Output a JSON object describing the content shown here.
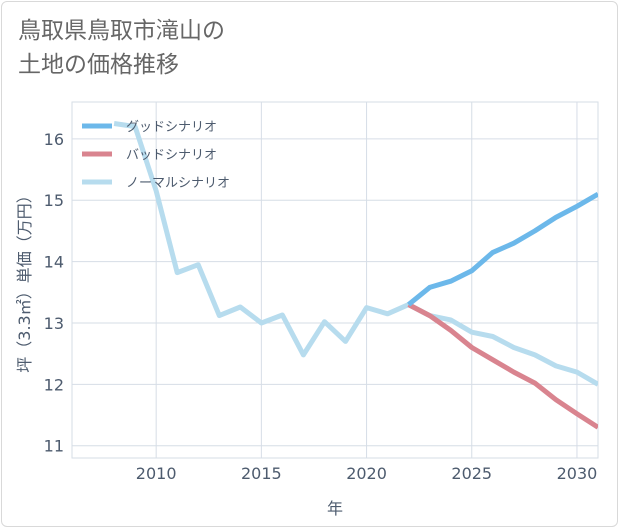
{
  "title_line1": "鳥取県鳥取市滝山の",
  "title_line2": "土地の価格推移",
  "chart_data": {
    "type": "line",
    "xlabel": "年",
    "ylabel": "坪（3.3㎡）単価（万円）",
    "xlim": [
      2006,
      2031
    ],
    "ylim": [
      10.8,
      16.6
    ],
    "xticks": [
      2010,
      2015,
      2020,
      2025,
      2030
    ],
    "yticks": [
      11,
      12,
      13,
      14,
      15,
      16
    ],
    "grid": true,
    "legend_position": "top-left",
    "series": [
      {
        "name": "グッドシナリオ",
        "color": "#6cb8ea",
        "x": [
          2022,
          2023,
          2024,
          2025,
          2026,
          2027,
          2028,
          2029,
          2030,
          2031
        ],
        "y": [
          13.3,
          13.58,
          13.68,
          13.85,
          14.15,
          14.3,
          14.5,
          14.72,
          14.9,
          15.1
        ]
      },
      {
        "name": "バッドシナリオ",
        "color": "#d9848f",
        "x": [
          2022,
          2023,
          2024,
          2025,
          2026,
          2027,
          2028,
          2029,
          2030,
          2031
        ],
        "y": [
          13.3,
          13.12,
          12.88,
          12.6,
          12.4,
          12.2,
          12.02,
          11.75,
          11.52,
          11.3
        ]
      },
      {
        "name": "ノーマルシナリオ",
        "color": "#b7dcee",
        "x": [
          2008,
          2009,
          2010,
          2011,
          2012,
          2013,
          2014,
          2015,
          2016,
          2017,
          2018,
          2019,
          2020,
          2021,
          2022,
          2023,
          2024,
          2025,
          2026,
          2027,
          2028,
          2029,
          2030,
          2031
        ],
        "y": [
          16.25,
          16.2,
          15.15,
          13.82,
          13.95,
          13.12,
          13.26,
          13.0,
          13.13,
          12.48,
          13.02,
          12.7,
          13.25,
          13.15,
          13.3,
          13.12,
          13.05,
          12.85,
          12.78,
          12.6,
          12.48,
          12.3,
          12.2,
          12.0
        ]
      }
    ]
  }
}
